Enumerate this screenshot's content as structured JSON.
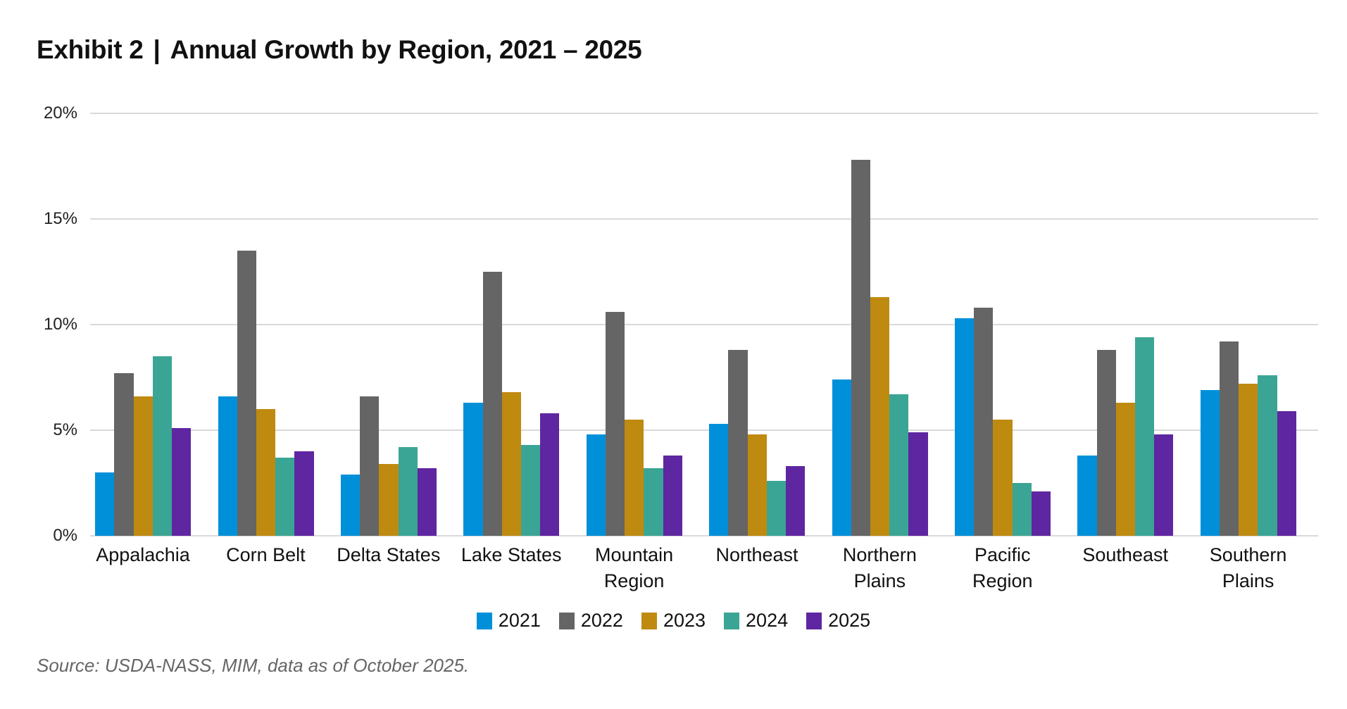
{
  "header": {
    "exhibit": "Exhibit 2",
    "separator": "|",
    "title": "Annual Growth by Region, 2021 – 2025"
  },
  "axis": {
    "y_ticks": [
      "0%",
      "5%",
      "10%",
      "15%",
      "20%"
    ]
  },
  "legend": {
    "items": [
      {
        "label": "2021",
        "color": "#0090d9"
      },
      {
        "label": "2022",
        "color": "#656565"
      },
      {
        "label": "2023",
        "color": "#bf8a10"
      },
      {
        "label": "2024",
        "color": "#3aa594"
      },
      {
        "label": "2025",
        "color": "#5e26a0"
      }
    ]
  },
  "footer": {
    "source": "Source: USDA-NASS, MIM, data as of October 2025."
  },
  "chart_data": {
    "type": "bar",
    "title": "Exhibit 2 | Annual Growth by Region, 2021 – 2025",
    "xlabel": "",
    "ylabel": "",
    "ylim": [
      0,
      20
    ],
    "y_ticks": [
      0,
      5,
      10,
      15,
      20
    ],
    "y_tick_format": "percent",
    "grid": true,
    "legend_position": "bottom",
    "categories": [
      "Appalachia",
      "Corn Belt",
      "Delta States",
      "Lake States",
      "Mountain Region",
      "Northeast",
      "Northern Plains",
      "Pacific Region",
      "Southeast",
      "Southern Plains"
    ],
    "category_lines": [
      [
        "Appalachia"
      ],
      [
        "Corn Belt"
      ],
      [
        "Delta States"
      ],
      [
        "Lake States"
      ],
      [
        "Mountain",
        "Region"
      ],
      [
        "Northeast"
      ],
      [
        "Northern",
        "Plains"
      ],
      [
        "Pacific",
        "Region"
      ],
      [
        "Southeast"
      ],
      [
        "Southern",
        "Plains"
      ]
    ],
    "series": [
      {
        "name": "2021",
        "color": "#0090d9",
        "values": [
          3.0,
          6.6,
          2.9,
          6.3,
          4.8,
          5.3,
          7.4,
          10.3,
          3.8,
          6.9
        ]
      },
      {
        "name": "2022",
        "color": "#656565",
        "values": [
          7.7,
          13.5,
          6.6,
          12.5,
          10.6,
          8.8,
          17.8,
          10.8,
          8.8,
          9.2
        ]
      },
      {
        "name": "2023",
        "color": "#bf8a10",
        "values": [
          6.6,
          6.0,
          3.4,
          6.8,
          5.5,
          4.8,
          11.3,
          5.5,
          6.3,
          7.2
        ]
      },
      {
        "name": "2024",
        "color": "#3aa594",
        "values": [
          8.5,
          3.7,
          4.2,
          4.3,
          3.2,
          2.6,
          6.7,
          2.5,
          9.4,
          7.6
        ]
      },
      {
        "name": "2025",
        "color": "#5e26a0",
        "values": [
          5.1,
          4.0,
          3.2,
          5.8,
          3.8,
          3.3,
          4.9,
          2.1,
          4.8,
          5.9
        ]
      }
    ]
  }
}
